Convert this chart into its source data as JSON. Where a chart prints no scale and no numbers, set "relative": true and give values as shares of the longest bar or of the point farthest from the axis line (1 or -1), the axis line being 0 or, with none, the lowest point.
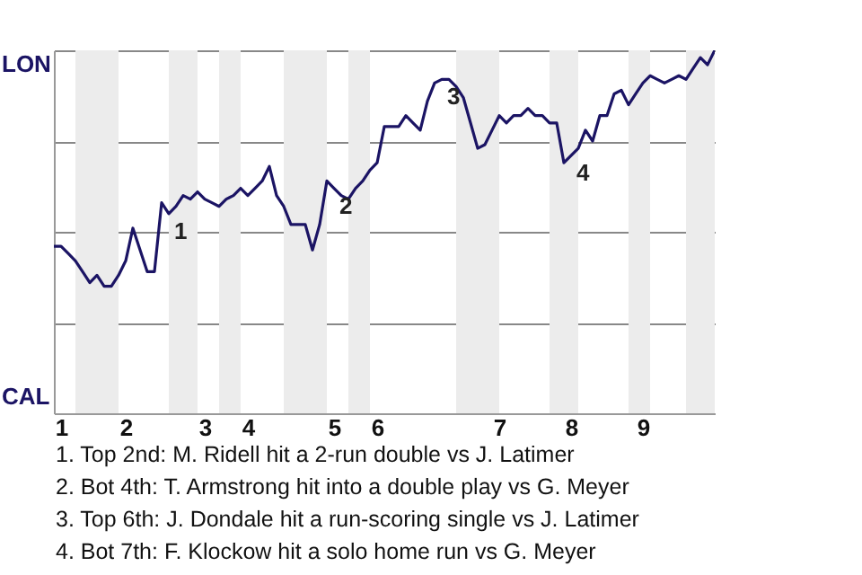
{
  "chart_data": {
    "type": "line",
    "relative": true,
    "grid": "y",
    "categories": [
      null,
      "1",
      null,
      null,
      null,
      null,
      null,
      null,
      null,
      null,
      "2",
      null,
      null,
      null,
      null,
      null,
      null,
      null,
      null,
      null,
      null,
      "3",
      null,
      null,
      null,
      null,
      null,
      "4",
      null,
      null,
      null,
      null,
      null,
      null,
      null,
      null,
      null,
      null,
      null,
      "5",
      null,
      null,
      null,
      null,
      null,
      "6",
      null,
      null,
      null,
      null,
      null,
      null,
      null,
      null,
      null,
      null,
      null,
      null,
      null,
      null,
      null,
      null,
      "7",
      null,
      null,
      null,
      null,
      null,
      null,
      null,
      null,
      null,
      "8",
      null,
      null,
      null,
      null,
      null,
      null,
      null,
      null,
      null,
      "9",
      null,
      null,
      null,
      null,
      null,
      null,
      null,
      null,
      null,
      null
    ],
    "series": [
      {
        "color": "#1b1464",
        "values": [
          0.46,
          0.46,
          0.44,
          0.42,
          0.39,
          0.36,
          0.38,
          0.35,
          0.35,
          0.38,
          0.42,
          0.51,
          0.45,
          0.39,
          0.39,
          0.58,
          0.55,
          0.57,
          0.6,
          0.59,
          0.61,
          0.59,
          0.58,
          0.57,
          0.59,
          0.6,
          0.62,
          0.6,
          0.62,
          0.64,
          0.68,
          0.6,
          0.57,
          0.52,
          0.52,
          0.52,
          0.45,
          0.52,
          0.64,
          0.62,
          0.6,
          0.59,
          0.62,
          0.64,
          0.67,
          0.69,
          0.79,
          0.79,
          0.79,
          0.82,
          0.8,
          0.78,
          0.86,
          0.91,
          0.92,
          0.92,
          0.9,
          0.87,
          0.8,
          0.73,
          0.74,
          0.78,
          0.82,
          0.8,
          0.82,
          0.82,
          0.84,
          0.82,
          0.82,
          0.8,
          0.8,
          0.69,
          0.71,
          0.73,
          0.78,
          0.75,
          0.82,
          0.82,
          0.88,
          0.89,
          0.85,
          0.88,
          0.91,
          0.93,
          0.92,
          0.91,
          0.92,
          0.93,
          0.92,
          0.95,
          0.98,
          0.96,
          1.0
        ]
      }
    ],
    "annotations": [
      "CAL",
      "LON",
      "1. Top 2nd: M. Ridell hit a 2-run double vs J. Latimer",
      "2. Bot 4th: T. Armstrong hit into a double play vs G. Meyer",
      "3. Top 6th: J. Dondale hit a run-scoring single vs J. Latimer",
      "4. Bot 7th: F. Klockow hit a solo home run vs G. Meyer",
      "1",
      "2",
      "3",
      "4"
    ]
  }
}
